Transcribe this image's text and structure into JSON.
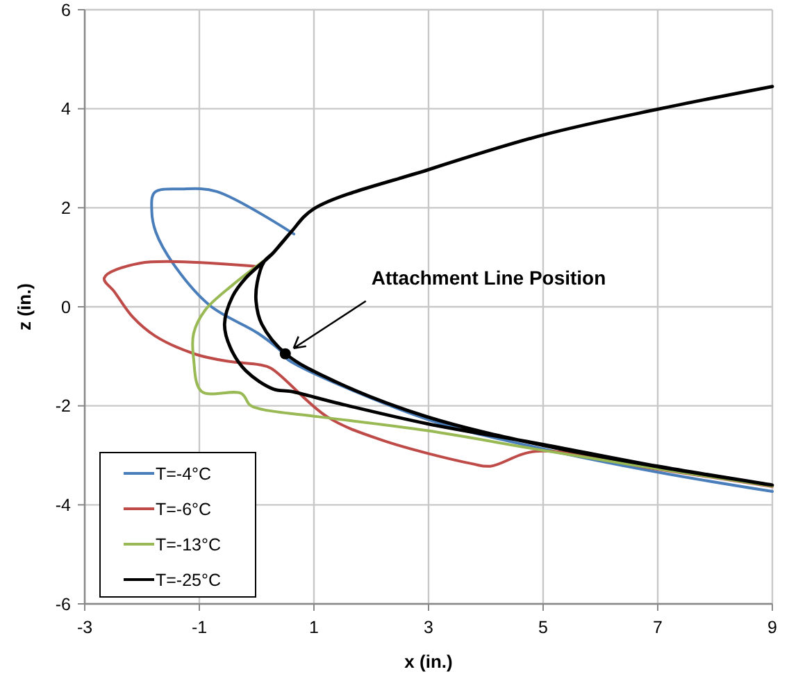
{
  "chart_data": {
    "type": "line",
    "xlabel": "x (in.)",
    "ylabel": "z (in.)",
    "xlim": [
      -3,
      9
    ],
    "ylim": [
      -6,
      6
    ],
    "xticks": [
      -3,
      -1,
      1,
      3,
      5,
      7,
      9
    ],
    "yticks": [
      -6,
      -4,
      -2,
      0,
      2,
      4,
      6
    ],
    "grid": true,
    "legend": "bottom left",
    "marker": "none",
    "line_style": "solid",
    "annotations": [
      {
        "text": "Attachment Line Position",
        "x": 0.5,
        "y": -0.95
      }
    ],
    "series": [
      {
        "name": "T=-4°C",
        "color": "#4a7ebb",
        "x": [
          0.65,
          -0.7,
          -1.3,
          -1.78,
          -1.83,
          -1.76,
          -1.45,
          -0.81,
          0.03,
          0.48,
          0.53,
          2.97,
          5,
          7,
          9
        ],
        "values": [
          1.47,
          2.33,
          2.38,
          2.31,
          1.93,
          1.51,
          0.86,
          0.02,
          -0.54,
          -0.96,
          -1.05,
          -2.27,
          -2.87,
          -3.34,
          -3.73
        ]
      },
      {
        "name": "T=-6°C",
        "color": "#be4b48",
        "x": [
          0.05,
          -2.04,
          -2.66,
          -2.48,
          -2.16,
          -1.77,
          -1.06,
          -0.5,
          0.05,
          0.25,
          1.23,
          2.18,
          3.76,
          4.08,
          4.87,
          7,
          9
        ],
        "values": [
          0.81,
          0.88,
          0.58,
          0.3,
          -0.21,
          -0.59,
          -0.96,
          -1.1,
          -1.17,
          -1.24,
          -2.22,
          -2.69,
          -3.17,
          -3.22,
          -2.92,
          -3.28,
          -3.63
        ]
      },
      {
        "name": "T=-13°C",
        "color": "#98b954",
        "x": [
          0.21,
          -0.42,
          -0.9,
          -1.1,
          -1.1,
          -0.96,
          -0.27,
          -0.11,
          0.13,
          1.08,
          2.97,
          5,
          7,
          9
        ],
        "values": [
          1,
          0.44,
          -0.07,
          -0.54,
          -1.05,
          -1.71,
          -1.75,
          -1.99,
          -2.08,
          -2.22,
          -2.5,
          -2.9,
          -3.27,
          -3.62
        ]
      },
      {
        "name": "T=-25°C",
        "color": "#000000",
        "x": [
          9,
          7,
          5,
          3,
          1,
          0.6,
          0.29,
          0.21,
          -0.19,
          -0.42,
          -0.56,
          -0.46,
          -0.19,
          0.29,
          0.6,
          1.39,
          2.97,
          5,
          7,
          9,
          7,
          5,
          2.97,
          1.39,
          0.52,
          0.09,
          -0.01,
          0.01,
          0.13,
          0.29,
          0.6
        ],
        "values": [
          4.45,
          3.99,
          3.47,
          2.77,
          1.98,
          1.51,
          1.09,
          1,
          0.58,
          0.21,
          -0.35,
          -0.82,
          -1.29,
          -1.66,
          -1.71,
          -1.94,
          -2.36,
          -2.78,
          -3.22,
          -3.6,
          -3.23,
          -2.8,
          -2.22,
          -1.52,
          -0.96,
          -0.35,
          0.11,
          0.49,
          0.91,
          1.09,
          1.51
        ]
      }
    ]
  }
}
